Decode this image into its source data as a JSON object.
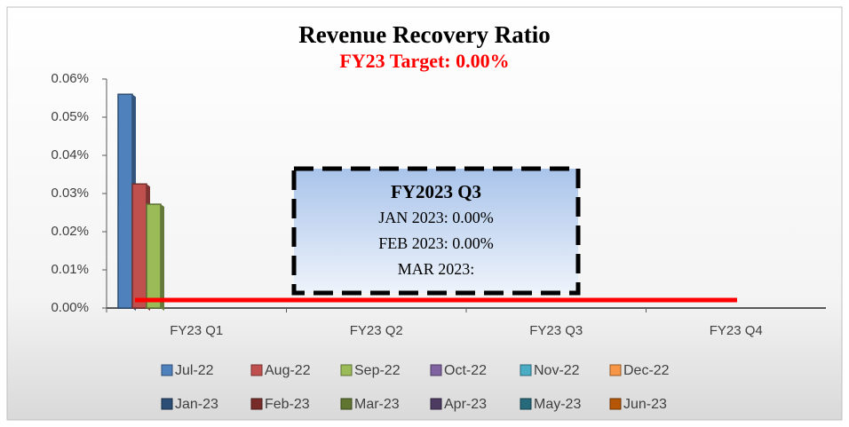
{
  "chart_data": {
    "type": "bar",
    "title": "Revenue Recovery Ratio",
    "subtitle": "FY23 Target: 0.00%",
    "categories": [
      "FY23 Q1",
      "FY23 Q2",
      "FY23 Q3",
      "FY23 Q4"
    ],
    "series": [
      {
        "name": "Jul-22",
        "color": "#4f81bd",
        "values": [
          0.056,
          null,
          null,
          null
        ]
      },
      {
        "name": "Aug-22",
        "color": "#c0504d",
        "values": [
          0.0325,
          null,
          null,
          null
        ]
      },
      {
        "name": "Sep-22",
        "color": "#9bbb59",
        "values": [
          0.0272,
          null,
          null,
          null
        ]
      },
      {
        "name": "Oct-22",
        "color": "#8064a2",
        "values": [
          null,
          0,
          null,
          null
        ]
      },
      {
        "name": "Nov-22",
        "color": "#4bacc6",
        "values": [
          null,
          0,
          null,
          null
        ]
      },
      {
        "name": "Dec-22",
        "color": "#f79646",
        "values": [
          null,
          0,
          null,
          null
        ]
      },
      {
        "name": "Jan-23",
        "color": "#2c4d75",
        "values": [
          null,
          null,
          0,
          null
        ]
      },
      {
        "name": "Feb-23",
        "color": "#772c2a",
        "values": [
          null,
          null,
          0,
          null
        ]
      },
      {
        "name": "Mar-23",
        "color": "#5f7530",
        "values": [
          null,
          null,
          0,
          null
        ]
      },
      {
        "name": "Apr-23",
        "color": "#4d3b62",
        "values": [
          null,
          null,
          null,
          0
        ]
      },
      {
        "name": "May-23",
        "color": "#276a7c",
        "values": [
          null,
          null,
          null,
          0
        ]
      },
      {
        "name": "Jun-23",
        "color": "#b65708",
        "values": [
          null,
          null,
          null,
          0
        ]
      }
    ],
    "target": 0,
    "target_color": "#ff0000",
    "ylim": [
      0,
      0.06
    ],
    "yticks": [
      {
        "value": 0,
        "label": "0.00%"
      },
      {
        "value": 0.01,
        "label": "0.01%"
      },
      {
        "value": 0.02,
        "label": "0.02%"
      },
      {
        "value": 0.03,
        "label": "0.03%"
      },
      {
        "value": 0.04,
        "label": "0.04%"
      },
      {
        "value": 0.05,
        "label": "0.05%"
      },
      {
        "value": 0.06,
        "label": "0.06%"
      }
    ],
    "annotation": {
      "title": "FY2023 Q3",
      "lines": [
        "JAN 2023: 0.00%",
        "FEB 2023: 0.00%",
        "MAR 2023:"
      ]
    }
  }
}
